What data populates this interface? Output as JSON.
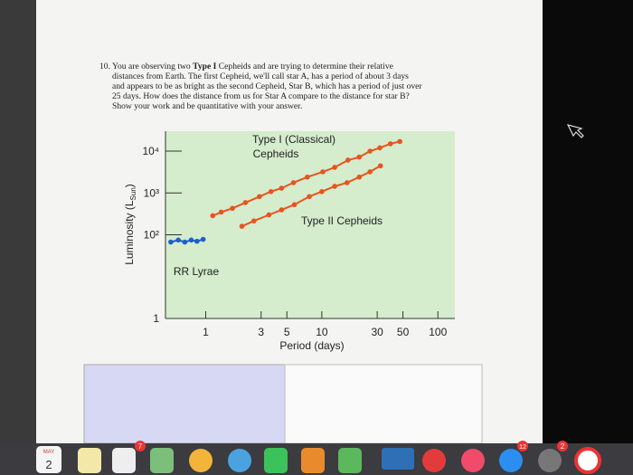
{
  "question": {
    "lines": [
      [
        "10. You are observing two ",
        "Type I",
        " Cepheids and are trying to determine their relative"
      ],
      "distances from Earth. The first Cepheid, we'll call star A, has a period of about 3 days",
      "and appears to be as bright as the second Cepheid, Star B, which has a period of just over",
      "25 days. How does the distance from us for Star A compare to the distance for star B?",
      "Show your work and be quantitative with your answer."
    ]
  },
  "chart_data": {
    "type": "scatter",
    "x_label": "Period (days)",
    "y_label": "Luminosity (L",
    "y_label_sub": "Sun",
    "y_label_end": ")",
    "xlog": true,
    "ylog": true,
    "xlim": [
      0.45,
      140
    ],
    "ylim": [
      1,
      30000
    ],
    "xticks": [
      1,
      3,
      5,
      10,
      30,
      50,
      100
    ],
    "yticks": [
      1,
      {
        "value": 100,
        "label": "10²"
      },
      {
        "value": 1000,
        "label": "10³"
      },
      {
        "value": 10000,
        "label": "10⁴"
      }
    ],
    "annotations": [
      "Type I (Classical)",
      "Cepheids",
      "Type II Cepheids",
      "RR Lyrae"
    ],
    "series": [
      {
        "color": "#e8541f",
        "connect": true,
        "x": [
          1.15,
          1.36,
          1.7,
          2.2,
          2.9,
          3.65,
          4.5,
          5.7,
          7.5,
          10.2,
          12.9,
          16.8,
          21,
          26,
          31.6,
          39,
          47
        ],
        "values": [
          286,
          350,
          430,
          590,
          820,
          1080,
          1300,
          1760,
          2400,
          3200,
          4100,
          6100,
          7200,
          10000,
          12000,
          15000,
          17000
        ]
      },
      {
        "color": "#e8541f",
        "connect": true,
        "x": [
          2.05,
          2.6,
          3.5,
          4.5,
          5.8,
          7.8,
          10,
          12.9,
          16.5,
          21,
          26,
          32
        ],
        "values": [
          160,
          215,
          300,
          395,
          525,
          820,
          1080,
          1440,
          1760,
          2400,
          3200,
          4460
        ]
      },
      {
        "color": "#1f5fc9",
        "connect": true,
        "x": [
          0.5,
          0.58,
          0.66,
          0.75,
          0.84,
          0.95
        ],
        "values": [
          67,
          75,
          67,
          75,
          70,
          78
        ]
      }
    ]
  },
  "dock": {
    "month": "MAY",
    "day": "2",
    "badges": [
      "7",
      "12",
      "2"
    ]
  }
}
